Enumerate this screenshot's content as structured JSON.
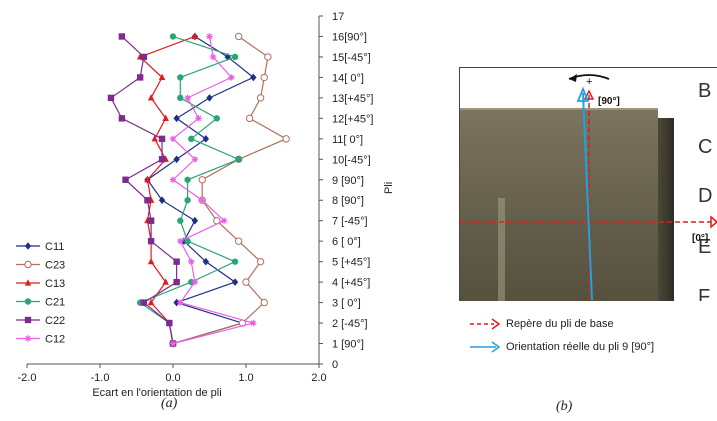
{
  "chart_data": {
    "type": "line",
    "xlabel": "Ecart en l'orientation de pli",
    "ylabel": "Pli",
    "xlim": [
      -2.0,
      2.0
    ],
    "ylim": [
      0,
      17
    ],
    "x_ticks": [
      "-2.0",
      "-1.0",
      "0.0",
      "1.0",
      "2.0"
    ],
    "y_ticks": [
      "0",
      "1 [90°]",
      "2 [-45°]",
      "3 [ 0°]",
      "4 [+45°]",
      "5 [+45°]",
      "6 [ 0°]",
      "7 [-45°]",
      "8 [90°]",
      "9 [90°]",
      "10[-45°]",
      "11[ 0°]",
      "12[+45°]",
      "13[+45°]",
      "14[ 0°]",
      "15[-45°]",
      "16[90°]",
      "17"
    ],
    "y": [
      1,
      2,
      3,
      4,
      5,
      6,
      7,
      8,
      9,
      10,
      11,
      12,
      13,
      14,
      15,
      16
    ],
    "legend_position": "left",
    "series": [
      {
        "name": "C11",
        "color": "#1f2f8a",
        "marker": "diamond",
        "x": [
          0.0,
          0.95,
          0.05,
          0.85,
          0.45,
          0.15,
          0.3,
          -0.15,
          -0.35,
          0.05,
          0.45,
          0.05,
          0.5,
          1.1,
          0.75,
          0.3
        ]
      },
      {
        "name": "C23",
        "color": "#b06f5f",
        "marker": "circle-open",
        "x": [
          0.0,
          0.95,
          1.25,
          1.0,
          1.2,
          0.9,
          0.6,
          0.4,
          0.4,
          0.9,
          1.55,
          1.05,
          1.2,
          1.25,
          1.3,
          0.9
        ]
      },
      {
        "name": "C13",
        "color": "#e41a1c",
        "marker": "triangle",
        "x": [
          0.0,
          -0.05,
          -0.3,
          -0.1,
          -0.3,
          -0.3,
          -0.35,
          -0.3,
          -0.35,
          -0.1,
          -0.25,
          -0.1,
          -0.3,
          -0.15,
          -0.45,
          0.3
        ]
      },
      {
        "name": "C21",
        "color": "#2aa578",
        "marker": "circle",
        "x": [
          0.0,
          -0.05,
          -0.45,
          0.25,
          0.85,
          0.2,
          0.1,
          0.2,
          0.2,
          0.9,
          0.25,
          0.6,
          0.1,
          0.1,
          0.85,
          0.0
        ]
      },
      {
        "name": "C22",
        "color": "#7b2c8c",
        "marker": "square",
        "x": [
          0.0,
          -0.05,
          -0.4,
          0.05,
          0.05,
          -0.3,
          -0.3,
          -0.35,
          -0.65,
          -0.15,
          -0.15,
          -0.7,
          -0.85,
          -0.45,
          -0.4,
          -0.7
        ]
      },
      {
        "name": "C12",
        "color": "#ea60e5",
        "marker": "star",
        "x": [
          0.0,
          1.1,
          0.1,
          0.3,
          0.25,
          0.1,
          0.7,
          0.4,
          0.0,
          0.3,
          0.0,
          0.35,
          0.2,
          0.8,
          0.55,
          0.5
        ]
      }
    ]
  },
  "captions": {
    "a": "(a)",
    "b": "(b)"
  },
  "photo": {
    "ruler_letters": [
      "B",
      "C",
      "D",
      "E",
      "F"
    ],
    "label_90": "[90°]",
    "label_0": "[0°]",
    "legend": [
      {
        "text": "Repère du pli de base",
        "color": "#e41a1c"
      },
      {
        "text": "Orientation réelle du pli 9 [90°]",
        "color": "#1fa2e0"
      }
    ]
  }
}
